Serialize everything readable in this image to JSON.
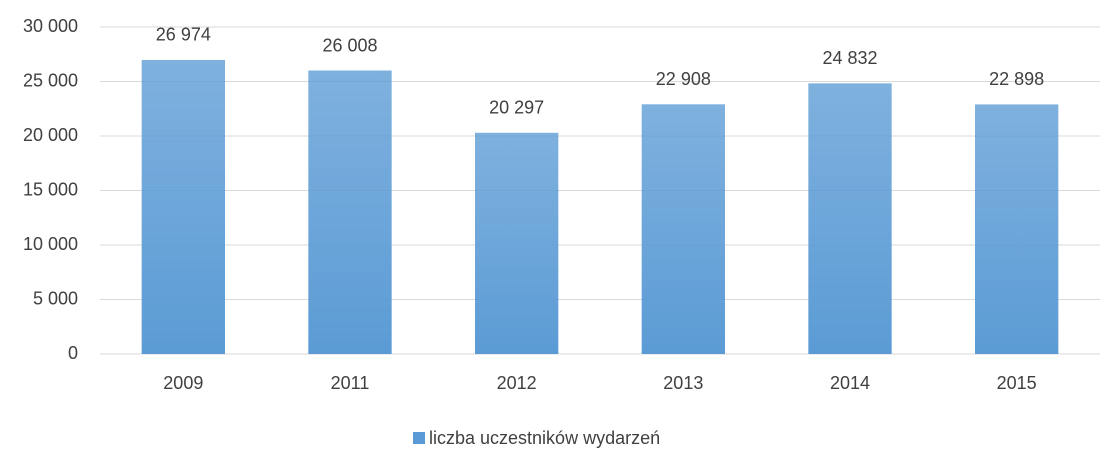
{
  "chart_data": {
    "type": "bar",
    "categories": [
      "2009",
      "2011",
      "2012",
      "2013",
      "2014",
      "2015"
    ],
    "series": [
      {
        "name": "liczba uczestników wydarzeń",
        "color": "#5b9bd5",
        "values": [
          26974,
          26008,
          20297,
          22908,
          24832,
          22898
        ],
        "value_labels": [
          "26 974",
          "26 008",
          "20 297",
          "22 908",
          "24 832",
          "22 898"
        ]
      }
    ],
    "ylim": [
      0,
      30000
    ],
    "yticks": [
      0,
      {
        "value": 5000,
        "label": "5 000"
      },
      {
        "value": 10000,
        "label": "10 000"
      },
      {
        "value": 15000,
        "label": "15 000"
      },
      {
        "value": 20000,
        "label": "20 000"
      },
      {
        "value": 25000,
        "label": "25 000"
      },
      {
        "value": 30000,
        "label": "30 000"
      }
    ],
    "grid": true,
    "legend": "bottom"
  }
}
